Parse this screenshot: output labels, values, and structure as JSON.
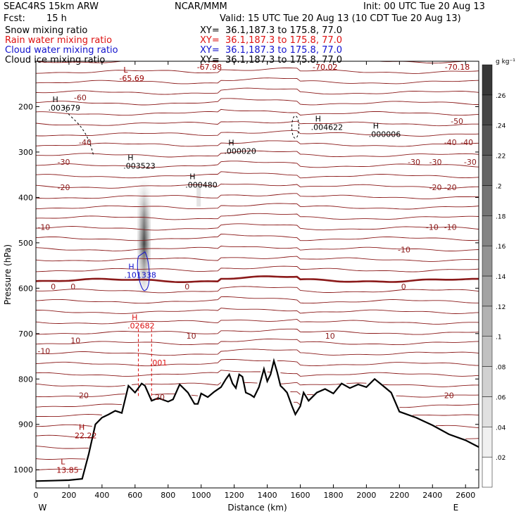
{
  "header": {
    "model": "SEAC4RS 15km ARW",
    "org": "NCAR/MMM",
    "init": "Init: 00 UTC Tue 20 Aug 13",
    "fcst_label": "Fcst:",
    "fcst_value": "15 h",
    "valid": "Valid: 15 UTC Tue 20 Aug 13 (10 CDT Tue 20 Aug 13)"
  },
  "fields": [
    {
      "name": "Snow mixing ratio",
      "xy": "XY=  36.1,187.3 to 175.8, 77.0",
      "color": "#000000"
    },
    {
      "name": "Rain water mixing ratio",
      "xy": "XY=  36.1,187.3 to 175.8, 77.0",
      "color": "#dd1111"
    },
    {
      "name": "Cloud water mixing ratio",
      "xy": "XY=  36.1,187.3 to 175.8, 77.0",
      "color": "#1111cc"
    },
    {
      "name": "Cloud ice mixing ratio",
      "xy": "XY=  36.1,187.3 to 175.8, 77.0",
      "color": "#000000"
    }
  ],
  "chart_data": {
    "type": "cross-section contour",
    "xlabel": "Distance (km)",
    "ylabel": "Pressure (hPa)",
    "xlim": [
      0,
      2680
    ],
    "ylim": [
      1040,
      100
    ],
    "x_ticks": [
      0,
      200,
      400,
      600,
      800,
      1000,
      1200,
      1400,
      1600,
      1800,
      2000,
      2200,
      2400,
      2600
    ],
    "x_tick_labels": [
      "0",
      "200",
      "400",
      "600",
      "800",
      "1000",
      "1200",
      "1400",
      "1600",
      "1800",
      "2000",
      "2200",
      "2400",
      "2600"
    ],
    "y_ticks": [
      1000,
      900,
      800,
      700,
      600,
      500,
      400,
      300,
      200
    ],
    "y_tick_labels": [
      "1000",
      "900",
      "800",
      "700",
      "600",
      "500",
      "400",
      "300",
      "200"
    ],
    "end_labels": [
      {
        "text": "W",
        "x": 100
      },
      {
        "text": "E",
        "x": 2610
      }
    ],
    "grid": false,
    "colorbar": {
      "unit": "g kg⁻¹",
      "min": 0,
      "max": 0.28,
      "ticks": [
        0.02,
        0.04,
        0.06,
        0.08,
        0.1,
        0.12,
        0.14,
        0.16,
        0.18,
        0.2,
        0.22,
        0.24,
        0.26
      ],
      "tick_labels": [
        ".02",
        ".04",
        ".06",
        ".08",
        ".1",
        ".12",
        ".14",
        ".16",
        ".18",
        ".2",
        ".22",
        ".24",
        ".26"
      ]
    },
    "terrain_pressure": [
      [
        0,
        1025
      ],
      [
        100,
        1024
      ],
      [
        200,
        1023
      ],
      [
        280,
        1020
      ],
      [
        320,
        965
      ],
      [
        360,
        900
      ],
      [
        400,
        885
      ],
      [
        440,
        878
      ],
      [
        480,
        870
      ],
      [
        520,
        875
      ],
      [
        560,
        815
      ],
      [
        600,
        830
      ],
      [
        640,
        810
      ],
      [
        660,
        815
      ],
      [
        700,
        848
      ],
      [
        740,
        842
      ],
      [
        800,
        850
      ],
      [
        830,
        845
      ],
      [
        870,
        812
      ],
      [
        920,
        830
      ],
      [
        960,
        855
      ],
      [
        980,
        855
      ],
      [
        1000,
        832
      ],
      [
        1040,
        840
      ],
      [
        1080,
        828
      ],
      [
        1120,
        818
      ],
      [
        1150,
        800
      ],
      [
        1170,
        790
      ],
      [
        1190,
        810
      ],
      [
        1210,
        820
      ],
      [
        1230,
        790
      ],
      [
        1250,
        795
      ],
      [
        1270,
        830
      ],
      [
        1300,
        835
      ],
      [
        1320,
        840
      ],
      [
        1350,
        818
      ],
      [
        1380,
        778
      ],
      [
        1400,
        805
      ],
      [
        1420,
        790
      ],
      [
        1440,
        760
      ],
      [
        1460,
        785
      ],
      [
        1480,
        815
      ],
      [
        1500,
        822
      ],
      [
        1520,
        830
      ],
      [
        1550,
        860
      ],
      [
        1570,
        878
      ],
      [
        1600,
        860
      ],
      [
        1620,
        830
      ],
      [
        1650,
        848
      ],
      [
        1700,
        830
      ],
      [
        1750,
        822
      ],
      [
        1800,
        832
      ],
      [
        1850,
        810
      ],
      [
        1900,
        820
      ],
      [
        1950,
        812
      ],
      [
        2000,
        818
      ],
      [
        2050,
        800
      ],
      [
        2100,
        815
      ],
      [
        2150,
        830
      ],
      [
        2200,
        872
      ],
      [
        2300,
        885
      ],
      [
        2400,
        902
      ],
      [
        2500,
        922
      ],
      [
        2600,
        935
      ],
      [
        2680,
        950
      ]
    ],
    "temperature_contours": [
      {
        "level": -70,
        "values": [
          [
            0,
            140
          ],
          [
            2680,
            140
          ]
        ]
      },
      {
        "level": -60,
        "values": [
          [
            0,
            180
          ],
          [
            2680,
            180
          ]
        ]
      },
      {
        "level": -50,
        "values": [
          [
            0,
            232
          ],
          [
            2680,
            232
          ]
        ]
      },
      {
        "level": -40,
        "values": [
          [
            0,
            278
          ],
          [
            2680,
            278
          ]
        ]
      },
      {
        "level": -30,
        "values": [
          [
            0,
            322
          ],
          [
            2680,
            322
          ]
        ]
      },
      {
        "level": -20,
        "values": [
          [
            0,
            378
          ],
          [
            2680,
            378
          ]
        ]
      },
      {
        "level": -10,
        "values": [
          [
            0,
            465
          ],
          [
            2680,
            465
          ]
        ]
      },
      {
        "level": 0,
        "values": [
          [
            0,
            596
          ],
          [
            2680,
            596
          ]
        ]
      },
      {
        "level": 10,
        "values": [
          [
            0,
            715
          ],
          [
            2680,
            715
          ]
        ]
      },
      {
        "level": 20,
        "values": [
          [
            0,
            836
          ],
          [
            2680,
            836
          ]
        ]
      }
    ],
    "isotherm_labels": [
      "-60",
      "-40",
      "-30",
      "-20",
      "-10",
      "0",
      "0",
      "0",
      "10",
      "-10",
      "10",
      "-30",
      "-20",
      "-10",
      "0",
      "-30",
      "-20",
      "-10",
      "-40",
      "10",
      "-10",
      "20",
      "20",
      "20",
      "-50",
      "-40",
      "-30"
    ],
    "extrema": [
      {
        "kind": "L",
        "value": "-65.69",
        "x": 530,
        "p": 125,
        "color": "#990000"
      },
      {
        "kind": "L",
        "value": "-67.98",
        "x": 1000,
        "p": 100,
        "color": "#990000"
      },
      {
        "kind": "L",
        "value": "-70.02",
        "x": 1700,
        "p": 100,
        "color": "#990000"
      },
      {
        "kind": "L",
        "value": "-70.18",
        "x": 2500,
        "p": 100,
        "color": "#990000"
      },
      {
        "kind": "H",
        "value": ".003679",
        "x": 100,
        "p": 190,
        "color": "#000000"
      },
      {
        "kind": "H",
        "value": ".003523",
        "x": 555,
        "p": 318,
        "color": "#000000"
      },
      {
        "kind": "H",
        "value": ".000480",
        "x": 930,
        "p": 360,
        "color": "#000000"
      },
      {
        "kind": "H",
        "value": ".000020",
        "x": 1165,
        "p": 285,
        "color": "#000000"
      },
      {
        "kind": "H",
        "value": ".004622",
        "x": 1690,
        "p": 233,
        "color": "#000000"
      },
      {
        "kind": "H",
        "value": ".000006",
        "x": 2040,
        "p": 248,
        "color": "#000000"
      },
      {
        "kind": "H",
        "value": ".101338",
        "x": 560,
        "p": 558,
        "color": "#1111cc"
      },
      {
        "kind": "H",
        "value": ".02682",
        "x": 580,
        "p": 670,
        "color": "#dd1111"
      },
      {
        "kind": "H",
        "value": "22.22",
        "x": 260,
        "p": 912,
        "color": "#990000"
      },
      {
        "kind": "L",
        "value": "13.85",
        "x": 150,
        "p": 988,
        "color": "#990000"
      }
    ],
    "contour_labels": [
      {
        "text": ".001",
        "x": 690,
        "p": 770,
        "color": "#dd1111"
      }
    ],
    "snow_column": {
      "x": 655,
      "p_top": 360,
      "p_bottom": 620,
      "max": 0.28
    }
  }
}
